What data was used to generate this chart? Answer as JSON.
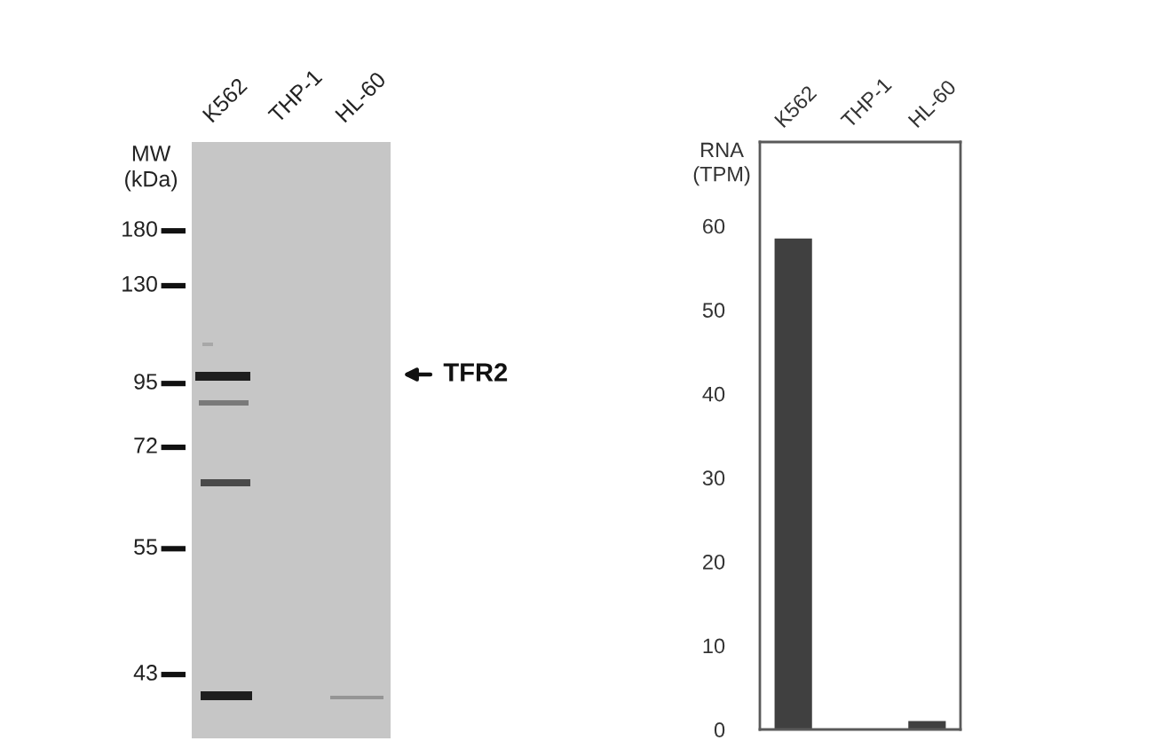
{
  "chart_data": [
    {
      "type": "other",
      "categories": [
        "K562",
        "THP-1",
        "HL-60"
      ],
      "ylabel": "MW\n(kDa)",
      "annotations": [
        "180",
        "130",
        "95",
        "72",
        "55",
        "43",
        "TFR2"
      ]
    },
    {
      "type": "bar",
      "categories": [
        "K562",
        "THP-1",
        "HL-60"
      ],
      "ylabel": "RNA\n(TPM)",
      "values": [
        58.5,
        0,
        1
      ],
      "color": "#404040",
      "ylim": [
        0,
        70
      ],
      "yticks": [
        0,
        10,
        20,
        30,
        40,
        50,
        60
      ]
    }
  ]
}
